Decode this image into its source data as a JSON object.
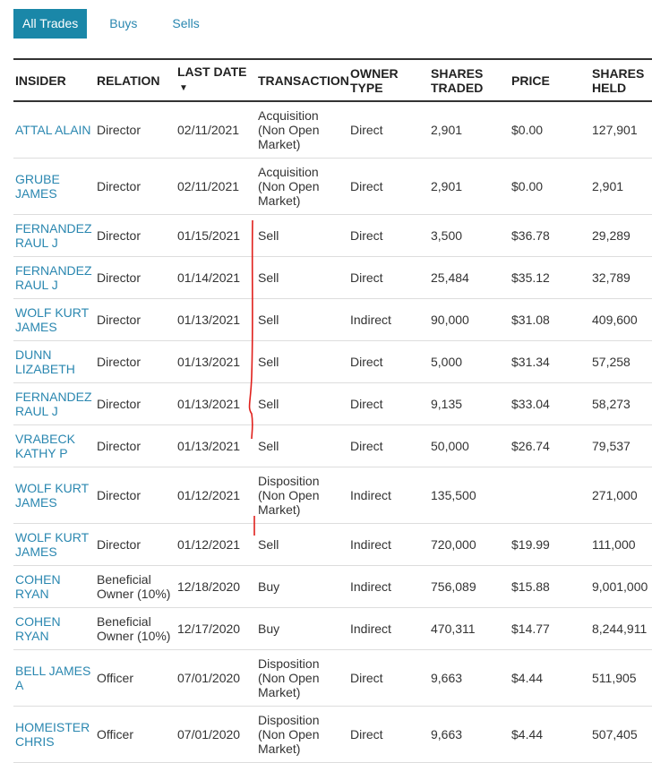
{
  "tabs": [
    "All Trades",
    "Buys",
    "Sells"
  ],
  "table": {
    "columns": [
      "INSIDER",
      "RELATION",
      "LAST DATE",
      "TRANSACTION",
      "OWNER TYPE",
      "SHARES TRADED",
      "PRICE",
      "SHARES HELD"
    ],
    "rows": [
      [
        "ATTAL ALAIN",
        "Director",
        "02/11/2021",
        "Acquisition (Non Open Market)",
        "Direct",
        "2,901",
        "$0.00",
        "127,901"
      ],
      [
        "GRUBE JAMES",
        "Director",
        "02/11/2021",
        "Acquisition (Non Open Market)",
        "Direct",
        "2,901",
        "$0.00",
        "2,901"
      ],
      [
        "FERNANDEZ RAUL J",
        "Director",
        "01/15/2021",
        "Sell",
        "Direct",
        "3,500",
        "$36.78",
        "29,289"
      ],
      [
        "FERNANDEZ RAUL J",
        "Director",
        "01/14/2021",
        "Sell",
        "Direct",
        "25,484",
        "$35.12",
        "32,789"
      ],
      [
        "WOLF KURT JAMES",
        "Director",
        "01/13/2021",
        "Sell",
        "Indirect",
        "90,000",
        "$31.08",
        "409,600"
      ],
      [
        "DUNN LIZABETH",
        "Director",
        "01/13/2021",
        "Sell",
        "Direct",
        "5,000",
        "$31.34",
        "57,258"
      ],
      [
        "FERNANDEZ RAUL J",
        "Director",
        "01/13/2021",
        "Sell",
        "Direct",
        "9,135",
        "$33.04",
        "58,273"
      ],
      [
        "VRABECK KATHY P",
        "Director",
        "01/13/2021",
        "Sell",
        "Direct",
        "50,000",
        "$26.74",
        "79,537"
      ],
      [
        "WOLF KURT JAMES",
        "Director",
        "01/12/2021",
        "Disposition (Non Open Market)",
        "Indirect",
        "135,500",
        null,
        "271,000"
      ],
      [
        "WOLF KURT JAMES",
        "Director",
        "01/12/2021",
        "Sell",
        "Indirect",
        "720,000",
        "$19.99",
        "111,000"
      ],
      [
        "COHEN RYAN",
        "Beneficial Owner (10%)",
        "12/18/2020",
        "Buy",
        "Indirect",
        "756,089",
        "$15.88",
        "9,001,000"
      ],
      [
        "COHEN RYAN",
        "Beneficial Owner (10%)",
        "12/17/2020",
        "Buy",
        "Indirect",
        "470,311",
        "$14.77",
        "8,244,911"
      ],
      [
        "BELL JAMES A",
        "Officer",
        "07/01/2020",
        "Disposition (Non Open Market)",
        "Direct",
        "9,663",
        "$4.44",
        "511,905"
      ],
      [
        "HOMEISTER CHRIS",
        "Officer",
        "07/01/2020",
        "Disposition (Non Open Market)",
        "Direct",
        "9,663",
        "$4.44",
        "507,405"
      ]
    ]
  }
}
